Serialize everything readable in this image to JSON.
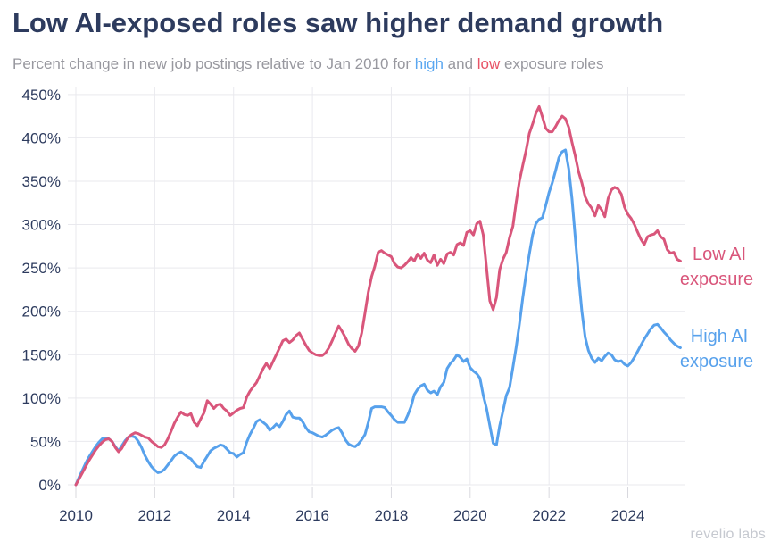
{
  "header": {
    "title": "Low AI-exposed roles saw higher demand growth",
    "subtitle": {
      "before": "Percent change in new job postings relative to Jan 2010 for ",
      "high_word": "high",
      "between": " and ",
      "low_word": "low",
      "after": " exposure roles"
    }
  },
  "watermark": "revelio labs",
  "colors": {
    "low_line": "#d9567b",
    "high_line": "#57a1ec",
    "subtitle_high_word": "#5aa7f0",
    "subtitle_low_word": "#e85467",
    "title_text": "#2d3b5e",
    "axis_text": "#2d3b5e",
    "subtitle_text": "#98989f",
    "grid": "#e9e9ee",
    "tick": "#d8d8de",
    "watermark_text": "#c6c9d0"
  },
  "chart_data": {
    "type": "line",
    "title": "Low AI-exposed roles saw higher demand growth",
    "subtitle": "Percent change in new job postings relative to Jan 2010 for high and low exposure roles",
    "x_unit": "month",
    "x_start": "2010-01",
    "x_end": "2025-05",
    "xlim": [
      2010,
      2025.6
    ],
    "ylim": [
      0,
      450
    ],
    "grid": true,
    "legend_position": "right-inline",
    "y_ticks_pct": [
      450,
      400,
      350,
      300,
      250,
      200,
      150,
      100,
      50,
      0
    ],
    "y_tick_labels": [
      "450%",
      "400%",
      "350%",
      "300%",
      "250%",
      "200%",
      "150%",
      "100%",
      "50%",
      "0%"
    ],
    "x_tick_years": [
      2010,
      2012,
      2014,
      2016,
      2018,
      2020,
      2022,
      2024
    ],
    "x_tick_labels": [
      "2010",
      "2012",
      "2014",
      "2016",
      "2018",
      "2020",
      "2022",
      "2024"
    ],
    "series": [
      {
        "name": "Low AI exposure",
        "label_lines": [
          "Low AI",
          "exposure"
        ],
        "color": "#d9567b",
        "values_pct": [
          0,
          7,
          14,
          21,
          28,
          34,
          40,
          45,
          49,
          52,
          53,
          50,
          43,
          38,
          42,
          49,
          55,
          58,
          60,
          59,
          57,
          55,
          54,
          50,
          47,
          44,
          43,
          46,
          53,
          62,
          71,
          78,
          84,
          81,
          80,
          82,
          72,
          68,
          76,
          83,
          97,
          93,
          88,
          92,
          93,
          88,
          85,
          80,
          83,
          86,
          88,
          89,
          101,
          108,
          113,
          118,
          126,
          134,
          140,
          134,
          142,
          150,
          158,
          166,
          168,
          164,
          167,
          172,
          175,
          168,
          161,
          155,
          152,
          150,
          149,
          149,
          152,
          158,
          166,
          175,
          183,
          177,
          170,
          162,
          157,
          154,
          160,
          175,
          198,
          222,
          240,
          252,
          268,
          270,
          267,
          265,
          263,
          255,
          251,
          250,
          253,
          257,
          262,
          258,
          266,
          261,
          267,
          259,
          256,
          265,
          253,
          260,
          255,
          266,
          268,
          265,
          277,
          279,
          276,
          291,
          293,
          288,
          301,
          304,
          288,
          250,
          212,
          202,
          216,
          248,
          260,
          268,
          285,
          298,
          325,
          350,
          368,
          385,
          405,
          416,
          428,
          436,
          424,
          411,
          407,
          407,
          413,
          420,
          425,
          422,
          412,
          395,
          379,
          361,
          348,
          332,
          324,
          319,
          310,
          322,
          317,
          309,
          330,
          340,
          343,
          341,
          335,
          320,
          312,
          307,
          300,
          291,
          283,
          277,
          286,
          288,
          289,
          293,
          286,
          283,
          271,
          267,
          268,
          260,
          258
        ]
      },
      {
        "name": "High AI exposure",
        "label_lines": [
          "High AI",
          "exposure"
        ],
        "color": "#57a1ec",
        "values_pct": [
          0,
          9,
          17,
          25,
          32,
          38,
          44,
          49,
          53,
          54,
          53,
          50,
          44,
          39,
          45,
          51,
          55,
          56,
          55,
          50,
          43,
          34,
          27,
          21,
          17,
          14,
          15,
          18,
          23,
          28,
          33,
          36,
          38,
          35,
          32,
          30,
          25,
          21,
          20,
          27,
          33,
          39,
          42,
          44,
          46,
          45,
          41,
          37,
          36,
          32,
          35,
          37,
          49,
          58,
          65,
          73,
          75,
          72,
          69,
          63,
          66,
          70,
          67,
          73,
          81,
          85,
          78,
          77,
          77,
          73,
          66,
          61,
          60,
          58,
          56,
          55,
          57,
          60,
          63,
          65,
          66,
          60,
          52,
          47,
          45,
          44,
          47,
          52,
          58,
          72,
          88,
          90,
          90,
          90,
          89,
          84,
          80,
          75,
          72,
          72,
          72,
          80,
          90,
          104,
          110,
          114,
          116,
          109,
          106,
          108,
          104,
          113,
          118,
          134,
          140,
          144,
          150,
          147,
          142,
          145,
          135,
          131,
          128,
          123,
          103,
          88,
          68,
          48,
          46,
          68,
          85,
          103,
          112,
          135,
          158,
          185,
          215,
          242,
          266,
          288,
          301,
          306,
          308,
          322,
          337,
          348,
          362,
          377,
          384,
          386,
          364,
          330,
          285,
          240,
          200,
          170,
          155,
          146,
          141,
          146,
          143,
          148,
          152,
          150,
          144,
          142,
          143,
          139,
          137,
          141,
          147,
          154,
          161,
          168,
          174,
          180,
          184,
          185,
          181,
          176,
          172,
          167,
          163,
          160,
          158
        ]
      }
    ]
  }
}
